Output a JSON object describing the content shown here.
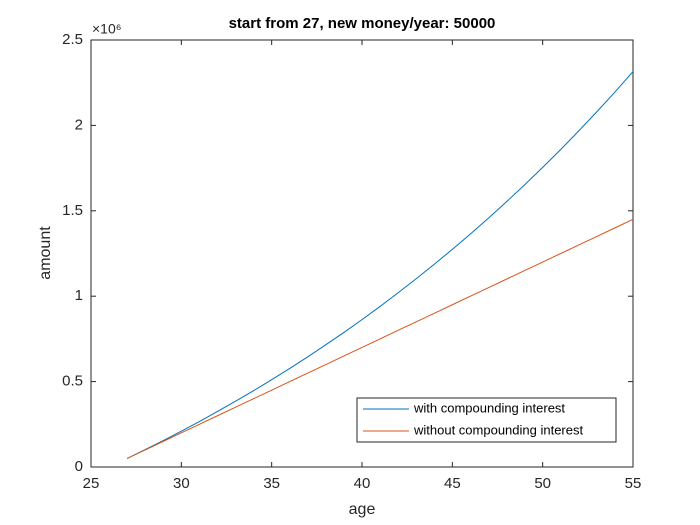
{
  "chart_data": {
    "type": "line",
    "title": "start from 27, new money/year: 50000",
    "x_label": "age",
    "y_label": "amount",
    "y_exponent": "×10⁶",
    "x": [
      27,
      28,
      29,
      30,
      31,
      32,
      33,
      34,
      35,
      36,
      37,
      38,
      39,
      40,
      41,
      42,
      43,
      44,
      45,
      46,
      47,
      48,
      49,
      50,
      51,
      52,
      53,
      54,
      55
    ],
    "series": [
      {
        "name": "with compounding interest",
        "color": "#0072bd",
        "values": [
          50000,
          102000,
          155000,
          210000,
          266000,
          325000,
          385000,
          447000,
          511000,
          577000,
          645000,
          716000,
          788000,
          863000,
          940000,
          1020000,
          1102000,
          1187000,
          1274000,
          1364000,
          1457000,
          1553000,
          1652000,
          1754000,
          1859000,
          1968000,
          2080000,
          2195000,
          2315000
        ]
      },
      {
        "name": "without compounding interest",
        "color": "#d95319",
        "values": [
          50000,
          100000,
          150000,
          200000,
          250000,
          300000,
          350000,
          400000,
          450000,
          500000,
          550000,
          600000,
          650000,
          700000,
          750000,
          800000,
          850000,
          900000,
          950000,
          1000000,
          1050000,
          1100000,
          1150000,
          1200000,
          1250000,
          1300000,
          1350000,
          1400000,
          1450000
        ]
      }
    ],
    "xlim": [
      25,
      55
    ],
    "xticks": [
      25,
      30,
      35,
      40,
      45,
      50,
      55
    ],
    "ylim": [
      0,
      2500000
    ],
    "yticks": [
      0,
      {
        "value": 500000,
        "label": "0.5"
      },
      {
        "value": 1000000,
        "label": "1"
      },
      {
        "value": 1500000,
        "label": "1.5"
      },
      {
        "value": 2000000,
        "label": "2"
      },
      {
        "value": 2500000,
        "label": "2.5"
      }
    ],
    "legend": "lower right"
  }
}
